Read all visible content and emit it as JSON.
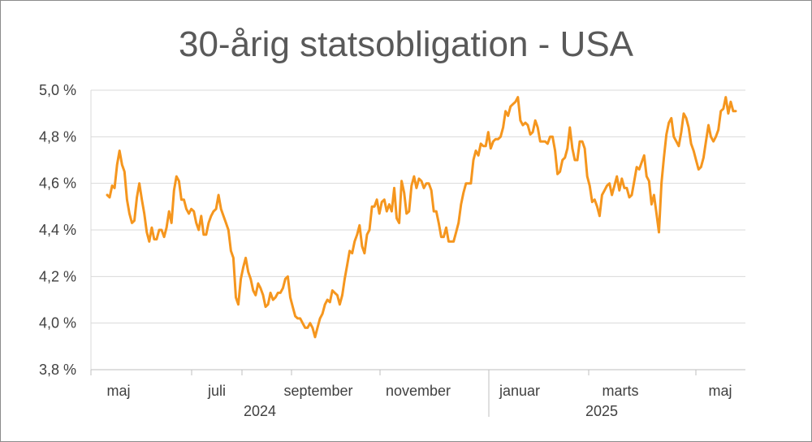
{
  "chart_data": {
    "type": "line",
    "title": "30-årig statsobligation - USA",
    "xlabel": "",
    "ylabel": "",
    "ylim": [
      3.8,
      5.0
    ],
    "y_ticks": [
      "3,8 %",
      "4,0 %",
      "4,2 %",
      "4,4 %",
      "4,6 %",
      "4,8 %",
      "5,0 %"
    ],
    "y_tick_values": [
      3.8,
      4.0,
      4.2,
      4.4,
      4.6,
      4.8,
      5.0
    ],
    "x_month_labels": [
      "maj",
      "juli",
      "september",
      "november",
      "januar",
      "marts",
      "maj"
    ],
    "x_year_labels": [
      "2024",
      "2025"
    ],
    "grid": true,
    "legend": "none",
    "color": "#F5961E",
    "series": [
      {
        "values": [
          4.55,
          4.54,
          4.59,
          4.58,
          4.68,
          4.74,
          4.68,
          4.65,
          4.53,
          4.47,
          4.43,
          4.44,
          4.54,
          4.6,
          4.53,
          4.47,
          4.39,
          4.35,
          4.41,
          4.36,
          4.36,
          4.4,
          4.4,
          4.37,
          4.41,
          4.48,
          4.43,
          4.57,
          4.63,
          4.61,
          4.53,
          4.53,
          4.49,
          4.47,
          4.49,
          4.48,
          4.43,
          4.4,
          4.46,
          4.38,
          4.38,
          4.43,
          4.46,
          4.48,
          4.49,
          4.55,
          4.49,
          4.46,
          4.43,
          4.4,
          4.31,
          4.28,
          4.11,
          4.08,
          4.19,
          4.24,
          4.28,
          4.22,
          4.19,
          4.14,
          4.12,
          4.17,
          4.15,
          4.12,
          4.07,
          4.08,
          4.13,
          4.1,
          4.11,
          4.13,
          4.13,
          4.15,
          4.19,
          4.2,
          4.11,
          4.07,
          4.03,
          4.02,
          4.02,
          4.0,
          3.98,
          3.98,
          4.0,
          3.98,
          3.94,
          3.98,
          4.02,
          4.04,
          4.08,
          4.1,
          4.09,
          4.14,
          4.13,
          4.12,
          4.08,
          4.12,
          4.19,
          4.25,
          4.31,
          4.3,
          4.35,
          4.38,
          4.42,
          4.33,
          4.3,
          4.38,
          4.4,
          4.5,
          4.5,
          4.53,
          4.47,
          4.52,
          4.53,
          4.48,
          4.51,
          4.48,
          4.58,
          4.45,
          4.43,
          4.61,
          4.56,
          4.47,
          4.48,
          4.59,
          4.63,
          4.58,
          4.62,
          4.61,
          4.58,
          4.6,
          4.6,
          4.57,
          4.48,
          4.48,
          4.43,
          4.37,
          4.37,
          4.41,
          4.35,
          4.35,
          4.35,
          4.39,
          4.43,
          4.51,
          4.56,
          4.6,
          4.6,
          4.6,
          4.7,
          4.74,
          4.72,
          4.77,
          4.76,
          4.76,
          4.82,
          4.75,
          4.78,
          4.79,
          4.79,
          4.8,
          4.84,
          4.91,
          4.89,
          4.93,
          4.94,
          4.95,
          4.97,
          4.87,
          4.85,
          4.86,
          4.85,
          4.81,
          4.82,
          4.87,
          4.84,
          4.78,
          4.78,
          4.78,
          4.77,
          4.8,
          4.8,
          4.74,
          4.64,
          4.65,
          4.7,
          4.71,
          4.75,
          4.84,
          4.75,
          4.7,
          4.7,
          4.78,
          4.78,
          4.75,
          4.63,
          4.59,
          4.52,
          4.53,
          4.5,
          4.46,
          4.55,
          4.57,
          4.59,
          4.6,
          4.55,
          4.59,
          4.63,
          4.57,
          4.62,
          4.58,
          4.58,
          4.54,
          4.55,
          4.61,
          4.67,
          4.66,
          4.69,
          4.72,
          4.63,
          4.61,
          4.51,
          4.55,
          4.47,
          4.39,
          4.6,
          4.71,
          4.81,
          4.86,
          4.88,
          4.8,
          4.78,
          4.76,
          4.82,
          4.9,
          4.88,
          4.84,
          4.77,
          4.74,
          4.7,
          4.66,
          4.67,
          4.71,
          4.78,
          4.85,
          4.8,
          4.78,
          4.8,
          4.83,
          4.91,
          4.92,
          4.97,
          4.9,
          4.95,
          4.91,
          4.91
        ]
      }
    ]
  }
}
